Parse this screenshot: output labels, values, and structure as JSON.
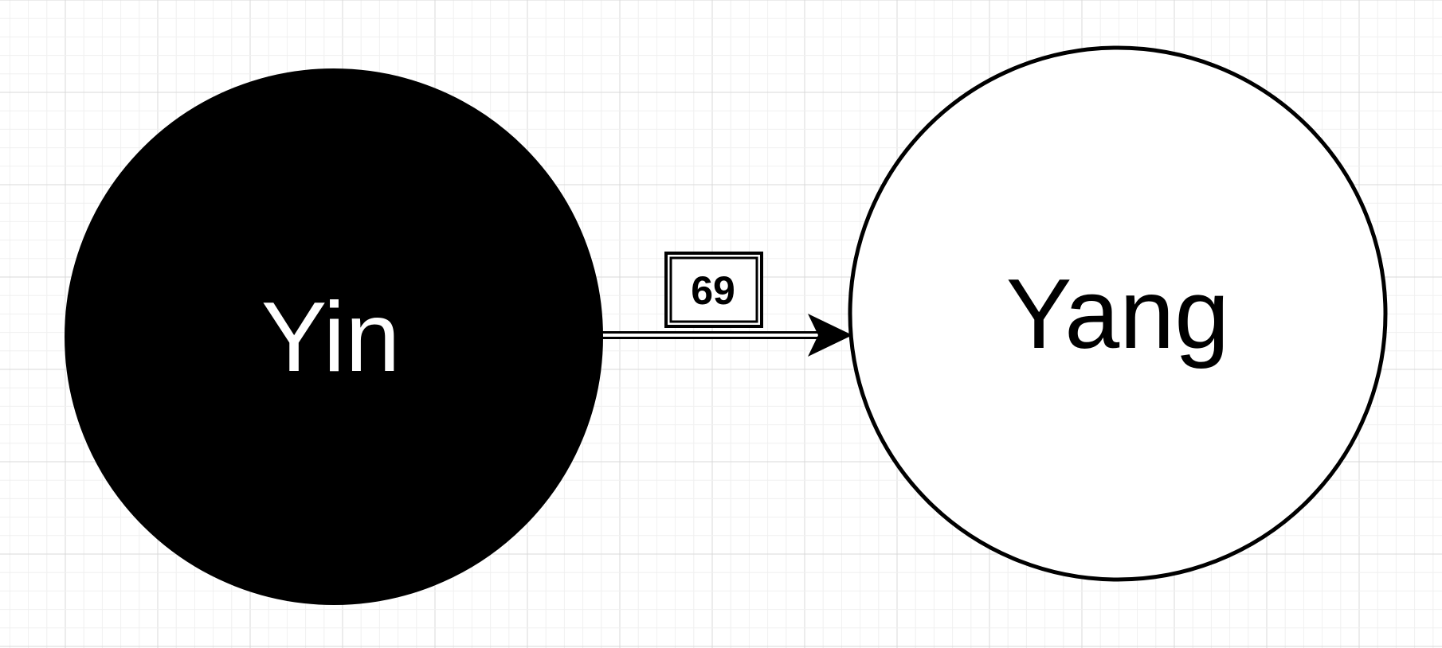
{
  "diagram": {
    "nodes": [
      {
        "id": "yin",
        "label": "Yin",
        "fill": "#000000",
        "text_color": "#ffffff",
        "stroke": "#000000"
      },
      {
        "id": "yang",
        "label": "Yang",
        "fill": "#ffffff",
        "text_color": "#000000",
        "stroke": "#000000"
      }
    ],
    "edge": {
      "from": "yin",
      "to": "yang",
      "label": "69"
    }
  },
  "colors": {
    "background": "#ffffff",
    "grid_minor": "#f0f0f0",
    "grid_major": "#d9d9d9",
    "ink": "#000000"
  }
}
